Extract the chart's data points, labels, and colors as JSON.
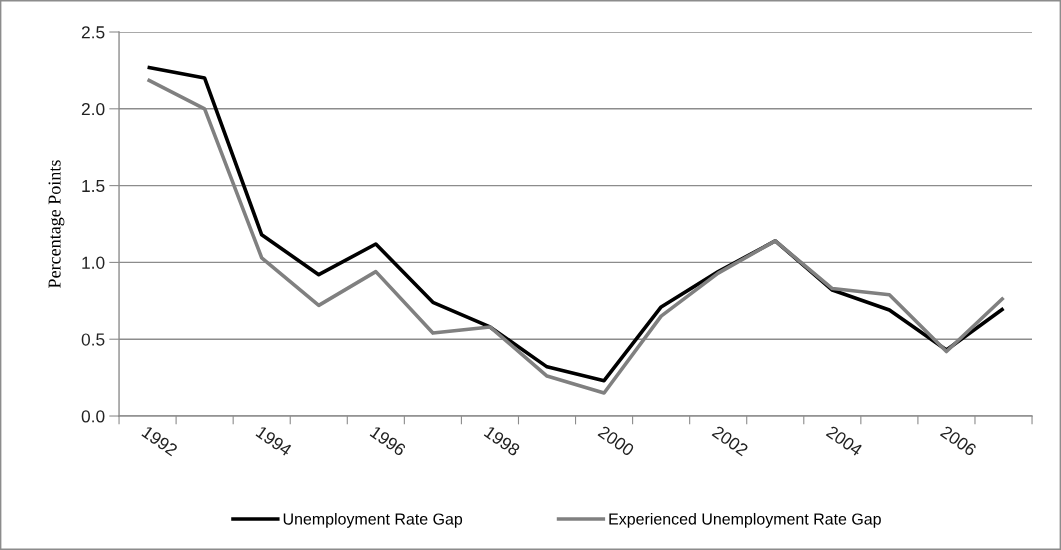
{
  "chart_data": {
    "type": "line",
    "categories": [
      "1992",
      null,
      "1994",
      null,
      "1996",
      null,
      "1998",
      null,
      "2000",
      null,
      "2002",
      null,
      "2004",
      null,
      "2006",
      null
    ],
    "ylabel": "Percentage Points",
    "ylim": [
      0,
      2.5
    ],
    "yticks": [
      {
        "value": 0,
        "label": "0.0"
      },
      0.5,
      {
        "value": 1,
        "label": "1.0"
      },
      1.5,
      {
        "value": 2,
        "label": "2.0"
      },
      2.5
    ],
    "grid": "y",
    "legend": "bottom",
    "line_style": "solid",
    "marker": "none",
    "series": [
      {
        "name": "Unemployment Rate Gap",
        "color": "#000000",
        "values": [
          2.27,
          2.2,
          1.18,
          0.92,
          1.12,
          0.74,
          0.58,
          0.32,
          0.23,
          0.71,
          0.94,
          1.14,
          0.82,
          0.69,
          0.43,
          0.7
        ]
      },
      {
        "name": "Experienced Unemployment Rate Gap",
        "color": "#808080",
        "values": [
          2.19,
          2.0,
          1.03,
          0.72,
          0.94,
          0.54,
          0.58,
          0.26,
          0.15,
          0.65,
          0.93,
          1.14,
          0.83,
          0.79,
          0.42,
          0.77
        ]
      }
    ]
  }
}
